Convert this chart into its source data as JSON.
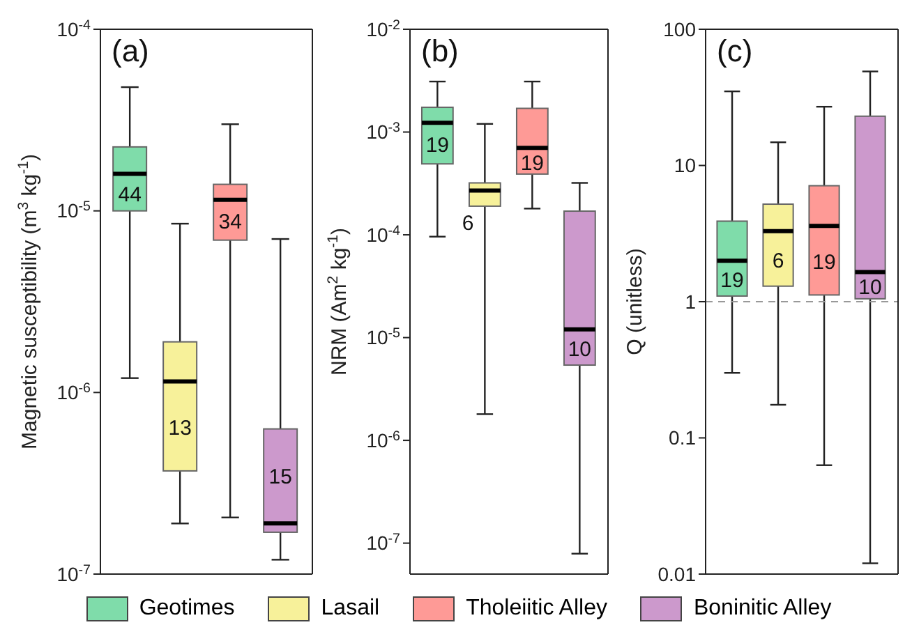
{
  "chart_data": [
    {
      "type": "box",
      "title": "(a)",
      "ylabel": "Magnetic susceptibility (m$^{3}$ kg$^{-1}$)",
      "categories": [
        null
      ],
      "log": true,
      "legend": "bottom",
      "ylim": [
        1e-07,
        0.0001
      ],
      "yticks": [
        {
          "value": 1e-07,
          "label": "10$^{-7}$"
        },
        {
          "value": 1e-06,
          "label": "10$^{-6}$"
        },
        {
          "value": 1e-05,
          "label": "10$^{-5}$"
        },
        {
          "value": 0.0001,
          "label": "10$^{-4}$"
        }
      ],
      "series": [
        {
          "name": "Geotimes",
          "color": "#7fdcaa",
          "boxes": [
            {
              "low": 1.2e-06,
              "q1": 1e-05,
              "median": 1.6e-05,
              "q3": 2.25e-05,
              "high": 4.8e-05
            }
          ]
        },
        {
          "name": "Lasail",
          "color": "#f7f19a",
          "boxes": [
            {
              "low": 1.9e-07,
              "q1": 3.7e-07,
              "median": 1.15e-06,
              "q3": 1.9e-06,
              "high": 8.5e-06
            }
          ]
        },
        {
          "name": "Tholeiitic Alley",
          "color": "#fe9a96",
          "boxes": [
            {
              "low": 2.05e-07,
              "q1": 6.9e-06,
              "median": 1.15e-05,
              "q3": 1.4e-05,
              "high": 3e-05
            }
          ]
        },
        {
          "name": "Boninitic Alley",
          "color": "#cc99cc",
          "boxes": [
            {
              "low": 1.2e-07,
              "q1": 1.7e-07,
              "median": 1.9e-07,
              "q3": 6.3e-07,
              "high": 7e-06
            }
          ]
        }
      ],
      "annotations": [
        "44",
        "13",
        "34",
        "15"
      ]
    },
    {
      "type": "box",
      "title": "(b)",
      "ylabel": "NRM (Am$^{2}$ kg$^{-1}$)",
      "categories": [
        null
      ],
      "log": true,
      "ylim": [
        5e-08,
        0.01
      ],
      "yticks": [
        {
          "value": 1e-07,
          "label": "10$^{-7}$"
        },
        {
          "value": 1e-06,
          "label": "10$^{-6}$"
        },
        {
          "value": 1e-05,
          "label": "10$^{-5}$"
        },
        {
          "value": 0.0001,
          "label": "10$^{-4}$"
        },
        {
          "value": 0.001,
          "label": "10$^{-3}$"
        },
        {
          "value": 0.01,
          "label": "10$^{-2}$"
        }
      ],
      "series": [
        {
          "color": "#7fdcaa",
          "boxes": [
            {
              "low": 9.6e-05,
              "q1": 0.00049,
              "median": 0.00123,
              "q3": 0.00174,
              "high": 0.0031
            }
          ]
        },
        {
          "color": "#f7f19a",
          "boxes": [
            {
              "low": 1.8e-06,
              "q1": 0.00019,
              "median": 0.00027,
              "q3": 0.00032,
              "high": 0.0012
            }
          ]
        },
        {
          "color": "#fe9a96",
          "boxes": [
            {
              "low": 0.00018,
              "q1": 0.00039,
              "median": 0.0007,
              "q3": 0.0017,
              "high": 0.0031
            }
          ]
        },
        {
          "color": "#cc99cc",
          "boxes": [
            {
              "low": 7.9e-08,
              "q1": 5.4e-06,
              "median": 1.2e-05,
              "q3": 0.00017,
              "high": 0.00032
            }
          ]
        }
      ],
      "annotations": [
        "19",
        "6",
        "19",
        "10"
      ]
    },
    {
      "type": "box",
      "title": "(c)",
      "ylabel": "Q (unitless)",
      "categories": [
        null
      ],
      "log": true,
      "ylim": [
        0.01,
        100
      ],
      "yticks": [
        0.01,
        0.1,
        1,
        10,
        100
      ],
      "ref_lines": [
        {
          "axis": "y",
          "value": 1,
          "color": "#999999",
          "line_style": "dashed"
        }
      ],
      "series": [
        {
          "color": "#7fdcaa",
          "boxes": [
            {
              "low": 0.3,
              "q1": 1.1,
              "median": 2.0,
              "q3": 3.9,
              "high": 35
            }
          ]
        },
        {
          "color": "#f7f19a",
          "boxes": [
            {
              "low": 0.175,
              "q1": 1.3,
              "median": 3.3,
              "q3": 5.2,
              "high": 14.8
            }
          ]
        },
        {
          "color": "#fe9a96",
          "boxes": [
            {
              "low": 0.063,
              "q1": 1.12,
              "median": 3.6,
              "q3": 7.1,
              "high": 27
            }
          ]
        },
        {
          "color": "#cc99cc",
          "boxes": [
            {
              "low": 0.012,
              "q1": 1.05,
              "median": 1.65,
              "q3": 23,
              "high": 49
            }
          ]
        }
      ],
      "annotations": [
        "19",
        "6",
        "19",
        "10"
      ]
    }
  ]
}
